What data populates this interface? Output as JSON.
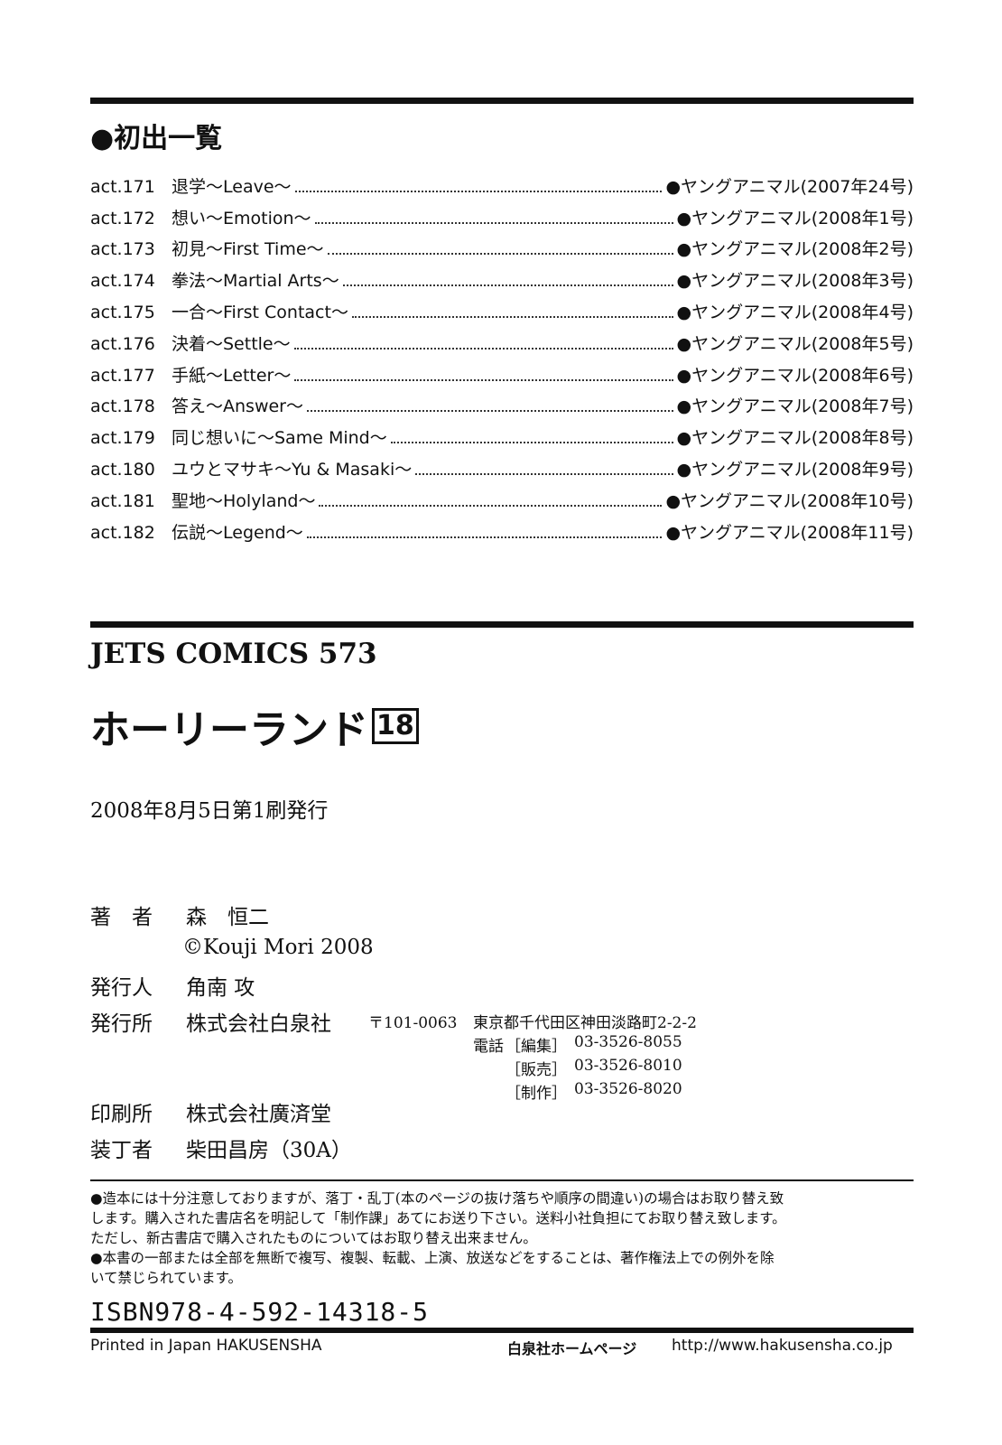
{
  "first_appearance": {
    "heading": "●初出一覧",
    "items": [
      {
        "act": "act.171",
        "title": "退学〜Leave〜",
        "publication": "●ヤングアニマル(2007年24号)"
      },
      {
        "act": "act.172",
        "title": "想い〜Emotion〜",
        "publication": "●ヤングアニマル(2008年1号)"
      },
      {
        "act": "act.173",
        "title": "初見〜First Time〜",
        "publication": "●ヤングアニマル(2008年2号)"
      },
      {
        "act": "act.174",
        "title": "拳法〜Martial Arts〜",
        "publication": "●ヤングアニマル(2008年3号)"
      },
      {
        "act": "act.175",
        "title": "一合〜First Contact〜",
        "publication": "●ヤングアニマル(2008年4号)"
      },
      {
        "act": "act.176",
        "title": "決着〜Settle〜",
        "publication": "●ヤングアニマル(2008年5号)"
      },
      {
        "act": "act.177",
        "title": "手紙〜Letter〜",
        "publication": "●ヤングアニマル(2008年6号)"
      },
      {
        "act": "act.178",
        "title": "答え〜Answer〜",
        "publication": "●ヤングアニマル(2008年7号)"
      },
      {
        "act": "act.179",
        "title": "同じ想いに〜Same Mind〜",
        "publication": "●ヤングアニマル(2008年8号)"
      },
      {
        "act": "act.180",
        "title": "ユウとマサキ〜Yu & Masaki〜",
        "publication": "●ヤングアニマル(2008年9号)"
      },
      {
        "act": "act.181",
        "title": "聖地〜Holyland〜",
        "publication": "●ヤングアニマル(2008年10号)"
      },
      {
        "act": "act.182",
        "title": "伝説〜Legend〜",
        "publication": "●ヤングアニマル(2008年11号)"
      }
    ]
  },
  "book": {
    "series": "JETS COMICS 573",
    "title": "ホーリーランド",
    "volume": "18",
    "issue_date": "2008年8月5日第1刷発行"
  },
  "credits": {
    "author_label": "著　者",
    "author": "森　恒二",
    "copyright": "©Kouji Mori 2008",
    "publisher_person_label": "発行人",
    "publisher_person": "角南 攻",
    "publisher_label": "発行所",
    "publisher": "株式会社白泉社",
    "postal": "〒101-0063",
    "address": "東京都千代田区神田淡路町2-2-2",
    "phone_label": "電話",
    "phones": [
      {
        "dept": "［編集］",
        "number": "03-3526-8055"
      },
      {
        "dept": "［販売］",
        "number": "03-3526-8010"
      },
      {
        "dept": "［制作］",
        "number": "03-3526-8020"
      }
    ],
    "printer_label": "印刷所",
    "printer": "株式会社廣済堂",
    "designer_label": "装丁者",
    "designer": "柴田昌房（30A）"
  },
  "notices": [
    "●造本には十分注意しておりますが、落丁・乱丁(本のページの抜け落ちや順序の間違い)の場合はお取り替え致",
    "します。購入された書店名を明記して「制作課」あてにお送り下さい。送料小社負担にてお取り替え致します。",
    "ただし、新古書店で購入されたものについてはお取り替え出来ません。",
    "●本書の一部または全部を無断で複写、複製、転載、上演、放送などをすることは、著作権法上での例外を除",
    "いて禁じられています。"
  ],
  "isbn": "ISBN978-4-592-14318-5",
  "footer": {
    "printed": "Printed in Japan HAKUSENSHA",
    "homepage_label": "白泉社ホームページ",
    "url": "http://www.hakusensha.co.jp"
  }
}
